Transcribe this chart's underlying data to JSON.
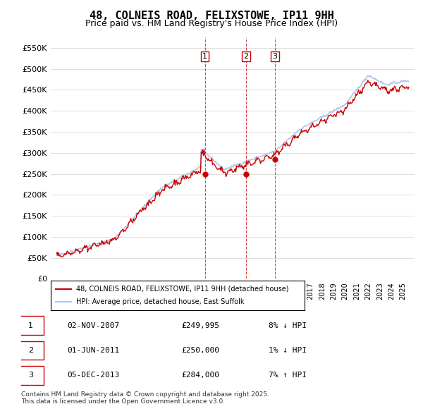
{
  "title": "48, COLNEIS ROAD, FELIXSTOWE, IP11 9HH",
  "subtitle": "Price paid vs. HM Land Registry's House Price Index (HPI)",
  "ylim": [
    0,
    575000
  ],
  "yticks": [
    0,
    50000,
    100000,
    150000,
    200000,
    250000,
    300000,
    350000,
    400000,
    450000,
    500000,
    550000
  ],
  "ytick_labels": [
    "£0",
    "£50K",
    "£100K",
    "£150K",
    "£200K",
    "£250K",
    "£300K",
    "£350K",
    "£400K",
    "£450K",
    "£500K",
    "£550K"
  ],
  "hpi_color": "#aec6e8",
  "price_color": "#cc0000",
  "vline_color": "#cc0000",
  "marker_color": "#cc0000",
  "transaction_dates": [
    2007.84,
    2011.42,
    2013.92
  ],
  "transaction_prices": [
    249995,
    250000,
    284000
  ],
  "transaction_labels": [
    "1",
    "2",
    "3"
  ],
  "legend_line1": "48, COLNEIS ROAD, FELIXSTOWE, IP11 9HH (detached house)",
  "legend_line2": "HPI: Average price, detached house, East Suffolk",
  "table_entries": [
    {
      "label": "1",
      "date": "02-NOV-2007",
      "price": "£249,995",
      "change": "8% ↓ HPI"
    },
    {
      "label": "2",
      "date": "01-JUN-2011",
      "price": "£250,000",
      "change": "1% ↓ HPI"
    },
    {
      "label": "3",
      "date": "05-DEC-2013",
      "price": "£284,000",
      "change": "7% ↑ HPI"
    }
  ],
  "footer": "Contains HM Land Registry data © Crown copyright and database right 2025.\nThis data is licensed under the Open Government Licence v3.0.",
  "background_color": "#ffffff",
  "grid_color": "#dddddd"
}
